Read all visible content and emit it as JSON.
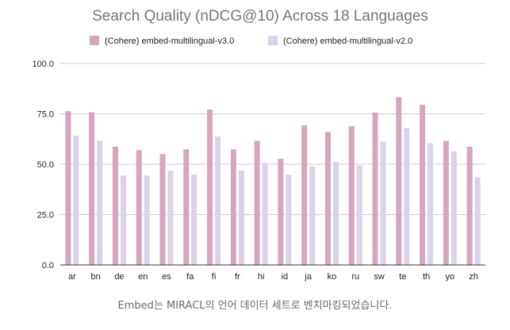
{
  "caption": "Embed는 MIRACL의 언어 데이터 세트로 벤치마킹되었습니다.",
  "chart_data": {
    "type": "bar",
    "title": "Search Quality (nDCG@10) Across 18 Languages",
    "xlabel": "",
    "ylabel": "",
    "ylim": [
      0,
      100
    ],
    "yticks": [
      "0.0",
      "25.0",
      "50.0",
      "75.0",
      "100.0"
    ],
    "grid": true,
    "legend_position": "top",
    "categories": [
      "ar",
      "bn",
      "de",
      "en",
      "es",
      "fa",
      "fi",
      "fr",
      "hi",
      "id",
      "ja",
      "ko",
      "ru",
      "sw",
      "te",
      "th",
      "yo",
      "zh"
    ],
    "series": [
      {
        "name": "(Cohere) embed-multilingual-v3.0",
        "color": "#d5a6bd",
        "values": [
          76.3,
          75.8,
          58.7,
          57.0,
          55.0,
          57.4,
          77.1,
          57.4,
          61.6,
          52.8,
          69.3,
          66.0,
          68.9,
          75.6,
          83.3,
          79.5,
          61.6,
          58.7
        ]
      },
      {
        "name": "(Cohere) embed-multilingual-v2.0",
        "color": "#d9d2e9",
        "values": [
          64.2,
          61.7,
          44.4,
          44.4,
          46.8,
          44.8,
          63.7,
          46.8,
          50.7,
          44.8,
          48.9,
          51.1,
          49.3,
          61.2,
          67.9,
          60.4,
          56.3,
          43.6
        ]
      }
    ]
  }
}
